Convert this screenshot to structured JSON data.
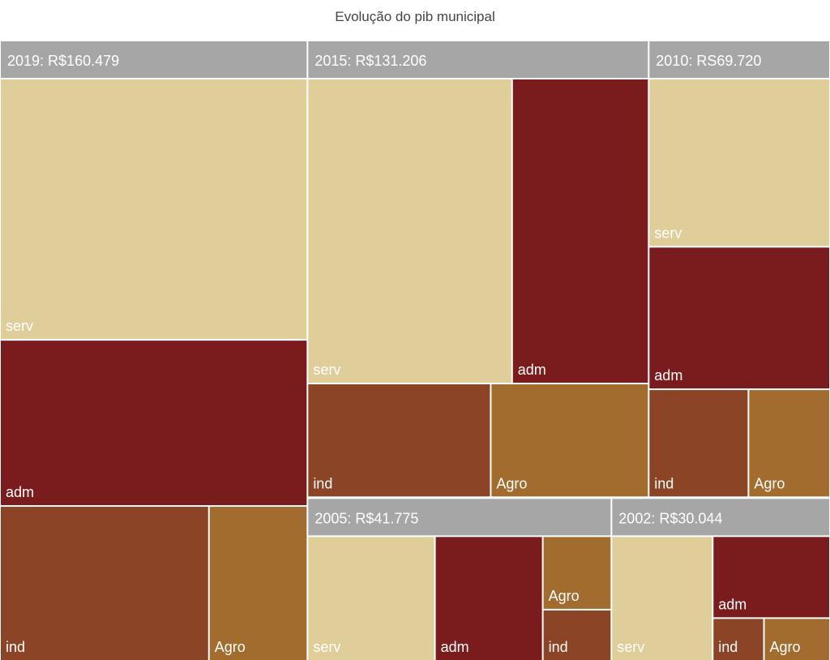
{
  "chart_data": {
    "type": "treemap",
    "title": "Evolução do pib municipal",
    "header_color": "#a6a6a6",
    "groups": [
      {
        "label": "2019: R$160.479",
        "value": 160479,
        "children": [
          {
            "name": "serv",
            "value": 72000,
            "color": "#dfcd9a"
          },
          {
            "name": "adm",
            "value": 45800,
            "color": "#7a1c1e"
          },
          {
            "name": "ind",
            "value": 29000,
            "color": "#8b4526"
          },
          {
            "name": "Agro",
            "value": 13679,
            "color": "#a16c2e"
          }
        ]
      },
      {
        "label": "2015: R$131.206",
        "value": 131206,
        "children": [
          {
            "name": "serv",
            "value": 57300,
            "color": "#dfcd9a"
          },
          {
            "name": "adm",
            "value": 38250,
            "color": "#7a1c1e"
          },
          {
            "name": "ind",
            "value": 19150,
            "color": "#8b4526"
          },
          {
            "name": "Agro",
            "value": 16506,
            "color": "#a16c2e"
          }
        ]
      },
      {
        "label": "2010: RS69.720",
        "value": 69720,
        "children": [
          {
            "name": "serv",
            "value": 28000,
            "color": "#dfcd9a"
          },
          {
            "name": "adm",
            "value": 23730,
            "color": "#7a1c1e"
          },
          {
            "name": "ind",
            "value": 9900,
            "color": "#8b4526"
          },
          {
            "name": "Agro",
            "value": 8090,
            "color": "#a16c2e"
          }
        ]
      },
      {
        "label": "2005: R$41.775",
        "value": 41775,
        "children": [
          {
            "name": "serv",
            "value": 17520,
            "color": "#dfcd9a"
          },
          {
            "name": "adm",
            "value": 14820,
            "color": "#7a1c1e"
          },
          {
            "name": "ind",
            "value": 3875,
            "color": "#8b4526"
          },
          {
            "name": "Agro",
            "value": 5560,
            "color": "#a16c2e"
          }
        ]
      },
      {
        "label": "2002: R$30.044",
        "value": 30044,
        "children": [
          {
            "name": "serv",
            "value": 13920,
            "color": "#dfcd9a"
          },
          {
            "name": "adm",
            "value": 10600,
            "color": "#7a1c1e"
          },
          {
            "name": "ind",
            "value": 2414,
            "color": "#8b4526"
          },
          {
            "name": "Agro",
            "value": 3110,
            "color": "#a16c2e"
          }
        ]
      }
    ]
  }
}
